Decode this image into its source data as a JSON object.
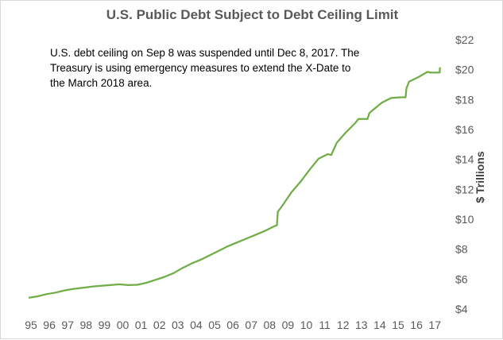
{
  "chart_data": {
    "type": "line",
    "title": "U.S. Public Debt Subject to Debt Ceiling Limit",
    "ylabel": "$ Trillions",
    "xlabel": "",
    "annotation": [
      "U.S. debt ceiling on Sep 8 was suspended until Dec 8, 2017.  The",
      "Treasury is using emergency measures to extend the X-Date to",
      "the March 2018 area."
    ],
    "x_tick_labels": [
      "95",
      "96",
      "97",
      "98",
      "99",
      "00",
      "01",
      "02",
      "03",
      "04",
      "05",
      "06",
      "07",
      "08",
      "09",
      "10",
      "11",
      "12",
      "13",
      "14",
      "15",
      "16",
      "17"
    ],
    "y_ticks": [
      4,
      6,
      8,
      10,
      12,
      14,
      16,
      18,
      20,
      22
    ],
    "y_tick_labels": [
      "$4",
      "$6",
      "$8",
      "$10",
      "$12",
      "$14",
      "$16",
      "$18",
      "$20",
      "$22"
    ],
    "ylim": [
      4,
      22
    ],
    "xlim": [
      1995,
      2017.8
    ],
    "grid": false,
    "legend": "none",
    "series": [
      {
        "color": "#70ad47",
        "x": [
          1995.0,
          1995.5,
          1996.0,
          1996.5,
          1997.0,
          1997.5,
          1998.0,
          1998.5,
          1999.0,
          1999.5,
          2000.0,
          2000.5,
          2001.0,
          2001.5,
          2002.0,
          2002.5,
          2003.0,
          2003.5,
          2004.0,
          2004.5,
          2005.0,
          2005.5,
          2006.0,
          2006.5,
          2007.0,
          2007.5,
          2008.0,
          2008.5,
          2008.7,
          2008.75,
          2009.0,
          2009.5,
          2010.0,
          2010.5,
          2011.0,
          2011.5,
          2011.7,
          2012.0,
          2012.5,
          2013.0,
          2013.2,
          2013.7,
          2013.8,
          2014.0,
          2014.5,
          2015.0,
          2015.5,
          2015.8,
          2015.85,
          2016.0,
          2016.5,
          2017.0,
          2017.2,
          2017.68,
          2017.7
        ],
        "y": [
          4.75,
          4.85,
          5.0,
          5.1,
          5.25,
          5.35,
          5.42,
          5.5,
          5.55,
          5.6,
          5.65,
          5.6,
          5.62,
          5.75,
          5.95,
          6.15,
          6.4,
          6.75,
          7.05,
          7.3,
          7.6,
          7.9,
          8.2,
          8.45,
          8.7,
          8.95,
          9.2,
          9.5,
          9.6,
          10.5,
          10.9,
          11.8,
          12.5,
          13.3,
          14.05,
          14.35,
          14.3,
          15.1,
          15.8,
          16.4,
          16.7,
          16.7,
          17.1,
          17.3,
          17.8,
          18.1,
          18.15,
          18.15,
          18.75,
          19.2,
          19.5,
          19.85,
          19.8,
          19.8,
          20.15
        ]
      }
    ]
  }
}
